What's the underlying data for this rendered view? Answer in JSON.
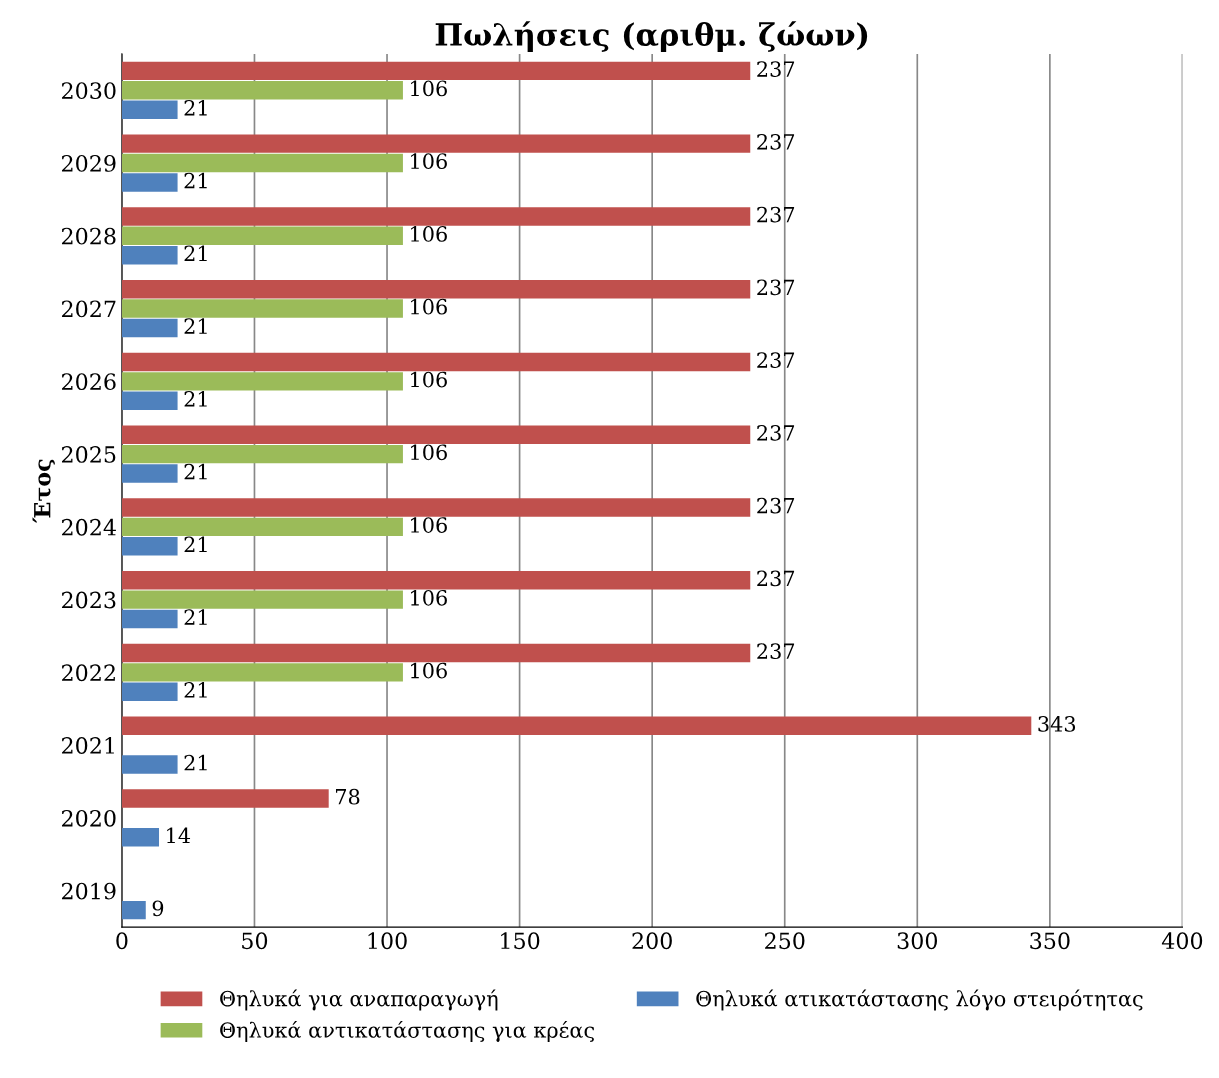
{
  "chart_data": {
    "type": "bar",
    "orientation": "horizontal",
    "title": "Πωλήσεις (αριθμ. ζώων)",
    "ylabel": "Έτος",
    "categories": [
      "2030",
      "2029",
      "2028",
      "2027",
      "2026",
      "2025",
      "2024",
      "2023",
      "2022",
      "2021",
      "2020",
      "2019"
    ],
    "series": [
      {
        "name": "Θηλυκά για αναπαραγωγή",
        "color": "#c0504d",
        "values": [
          237,
          237,
          237,
          237,
          237,
          237,
          237,
          237,
          237,
          343,
          78,
          null
        ]
      },
      {
        "name": "Θηλυκά αντικατάστασης για κρέας",
        "color": "#9bbb59",
        "values": [
          106,
          106,
          106,
          106,
          106,
          106,
          106,
          106,
          106,
          null,
          null,
          null
        ]
      },
      {
        "name": "Θηλυκά ατικατάστασης λόγο στειρότητας",
        "color": "#4f81bd",
        "values": [
          21,
          21,
          21,
          21,
          21,
          21,
          21,
          21,
          21,
          21,
          14,
          9
        ]
      }
    ],
    "xlim": [
      0,
      400
    ],
    "xticks": [
      0,
      50,
      100,
      150,
      200,
      250,
      300,
      350,
      400
    ],
    "grid": "x",
    "legend": "bottom",
    "data_labels": true
  }
}
